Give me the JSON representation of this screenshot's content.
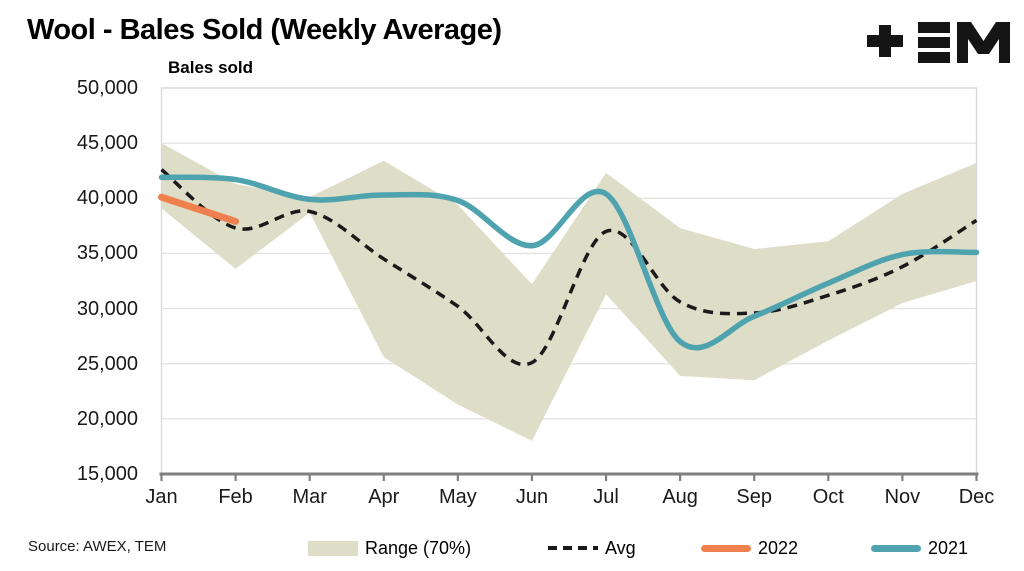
{
  "header": {
    "title": "Wool - Bales Sold (Weekly Average)",
    "logo": "tem-logo"
  },
  "footer": {
    "source": "Source: AWEX, TEM"
  },
  "chart_data": {
    "type": "area+line",
    "title": "Wool - Bales Sold (Weekly Average)",
    "ylabel": "Bales sold",
    "xlabel": "",
    "grid": true,
    "legend_position": "bottom",
    "ylim": [
      15000,
      50000
    ],
    "y_ticks": [
      50000,
      45000,
      40000,
      35000,
      30000,
      25000,
      20000,
      15000
    ],
    "y_tick_labels": [
      "50,000",
      "45,000",
      "40,000",
      "35,000",
      "30,000",
      "25,000",
      "20,000",
      "15,000"
    ],
    "categories": [
      "Jan",
      "Feb",
      "Mar",
      "Apr",
      "May",
      "Jun",
      "Jul",
      "Aug",
      "Sep",
      "Oct",
      "Nov",
      "Dec"
    ],
    "series": [
      {
        "name": "Range (70%)",
        "type": "band",
        "color": "#DEDDC8",
        "upper": [
          45000,
          41300,
          40100,
          43400,
          39400,
          32200,
          42300,
          37300,
          35400,
          36100,
          40400,
          43200
        ],
        "lower": [
          39100,
          33600,
          38700,
          25600,
          21300,
          18000,
          31300,
          23900,
          23500,
          27100,
          30500,
          32500
        ]
      },
      {
        "name": "Avg",
        "type": "line",
        "style": "dashed",
        "color": "#1A1A1A",
        "values": [
          42600,
          37300,
          38800,
          34500,
          30200,
          25100,
          37000,
          30600,
          29600,
          31200,
          33800,
          38000
        ]
      },
      {
        "name": "2022",
        "type": "line",
        "style": "solid",
        "color": "#F0814E",
        "values": [
          40100,
          37900,
          null,
          null,
          null,
          null,
          null,
          null,
          null,
          null,
          null,
          null
        ]
      },
      {
        "name": "2021",
        "type": "line",
        "style": "solid",
        "color": "#4FA3AF",
        "values": [
          41900,
          41700,
          39900,
          40300,
          39800,
          35700,
          40400,
          27000,
          29300,
          32300,
          34900,
          35100
        ]
      }
    ],
    "axis_colors": {
      "axis_line": "#7F7F7F",
      "gridline": "#E4E4E0",
      "plot_border": "#D9D9D9"
    }
  },
  "legend": {
    "items": [
      {
        "label": "Range (70%)"
      },
      {
        "label": "Avg"
      },
      {
        "label": "2022"
      },
      {
        "label": "2021"
      }
    ]
  }
}
